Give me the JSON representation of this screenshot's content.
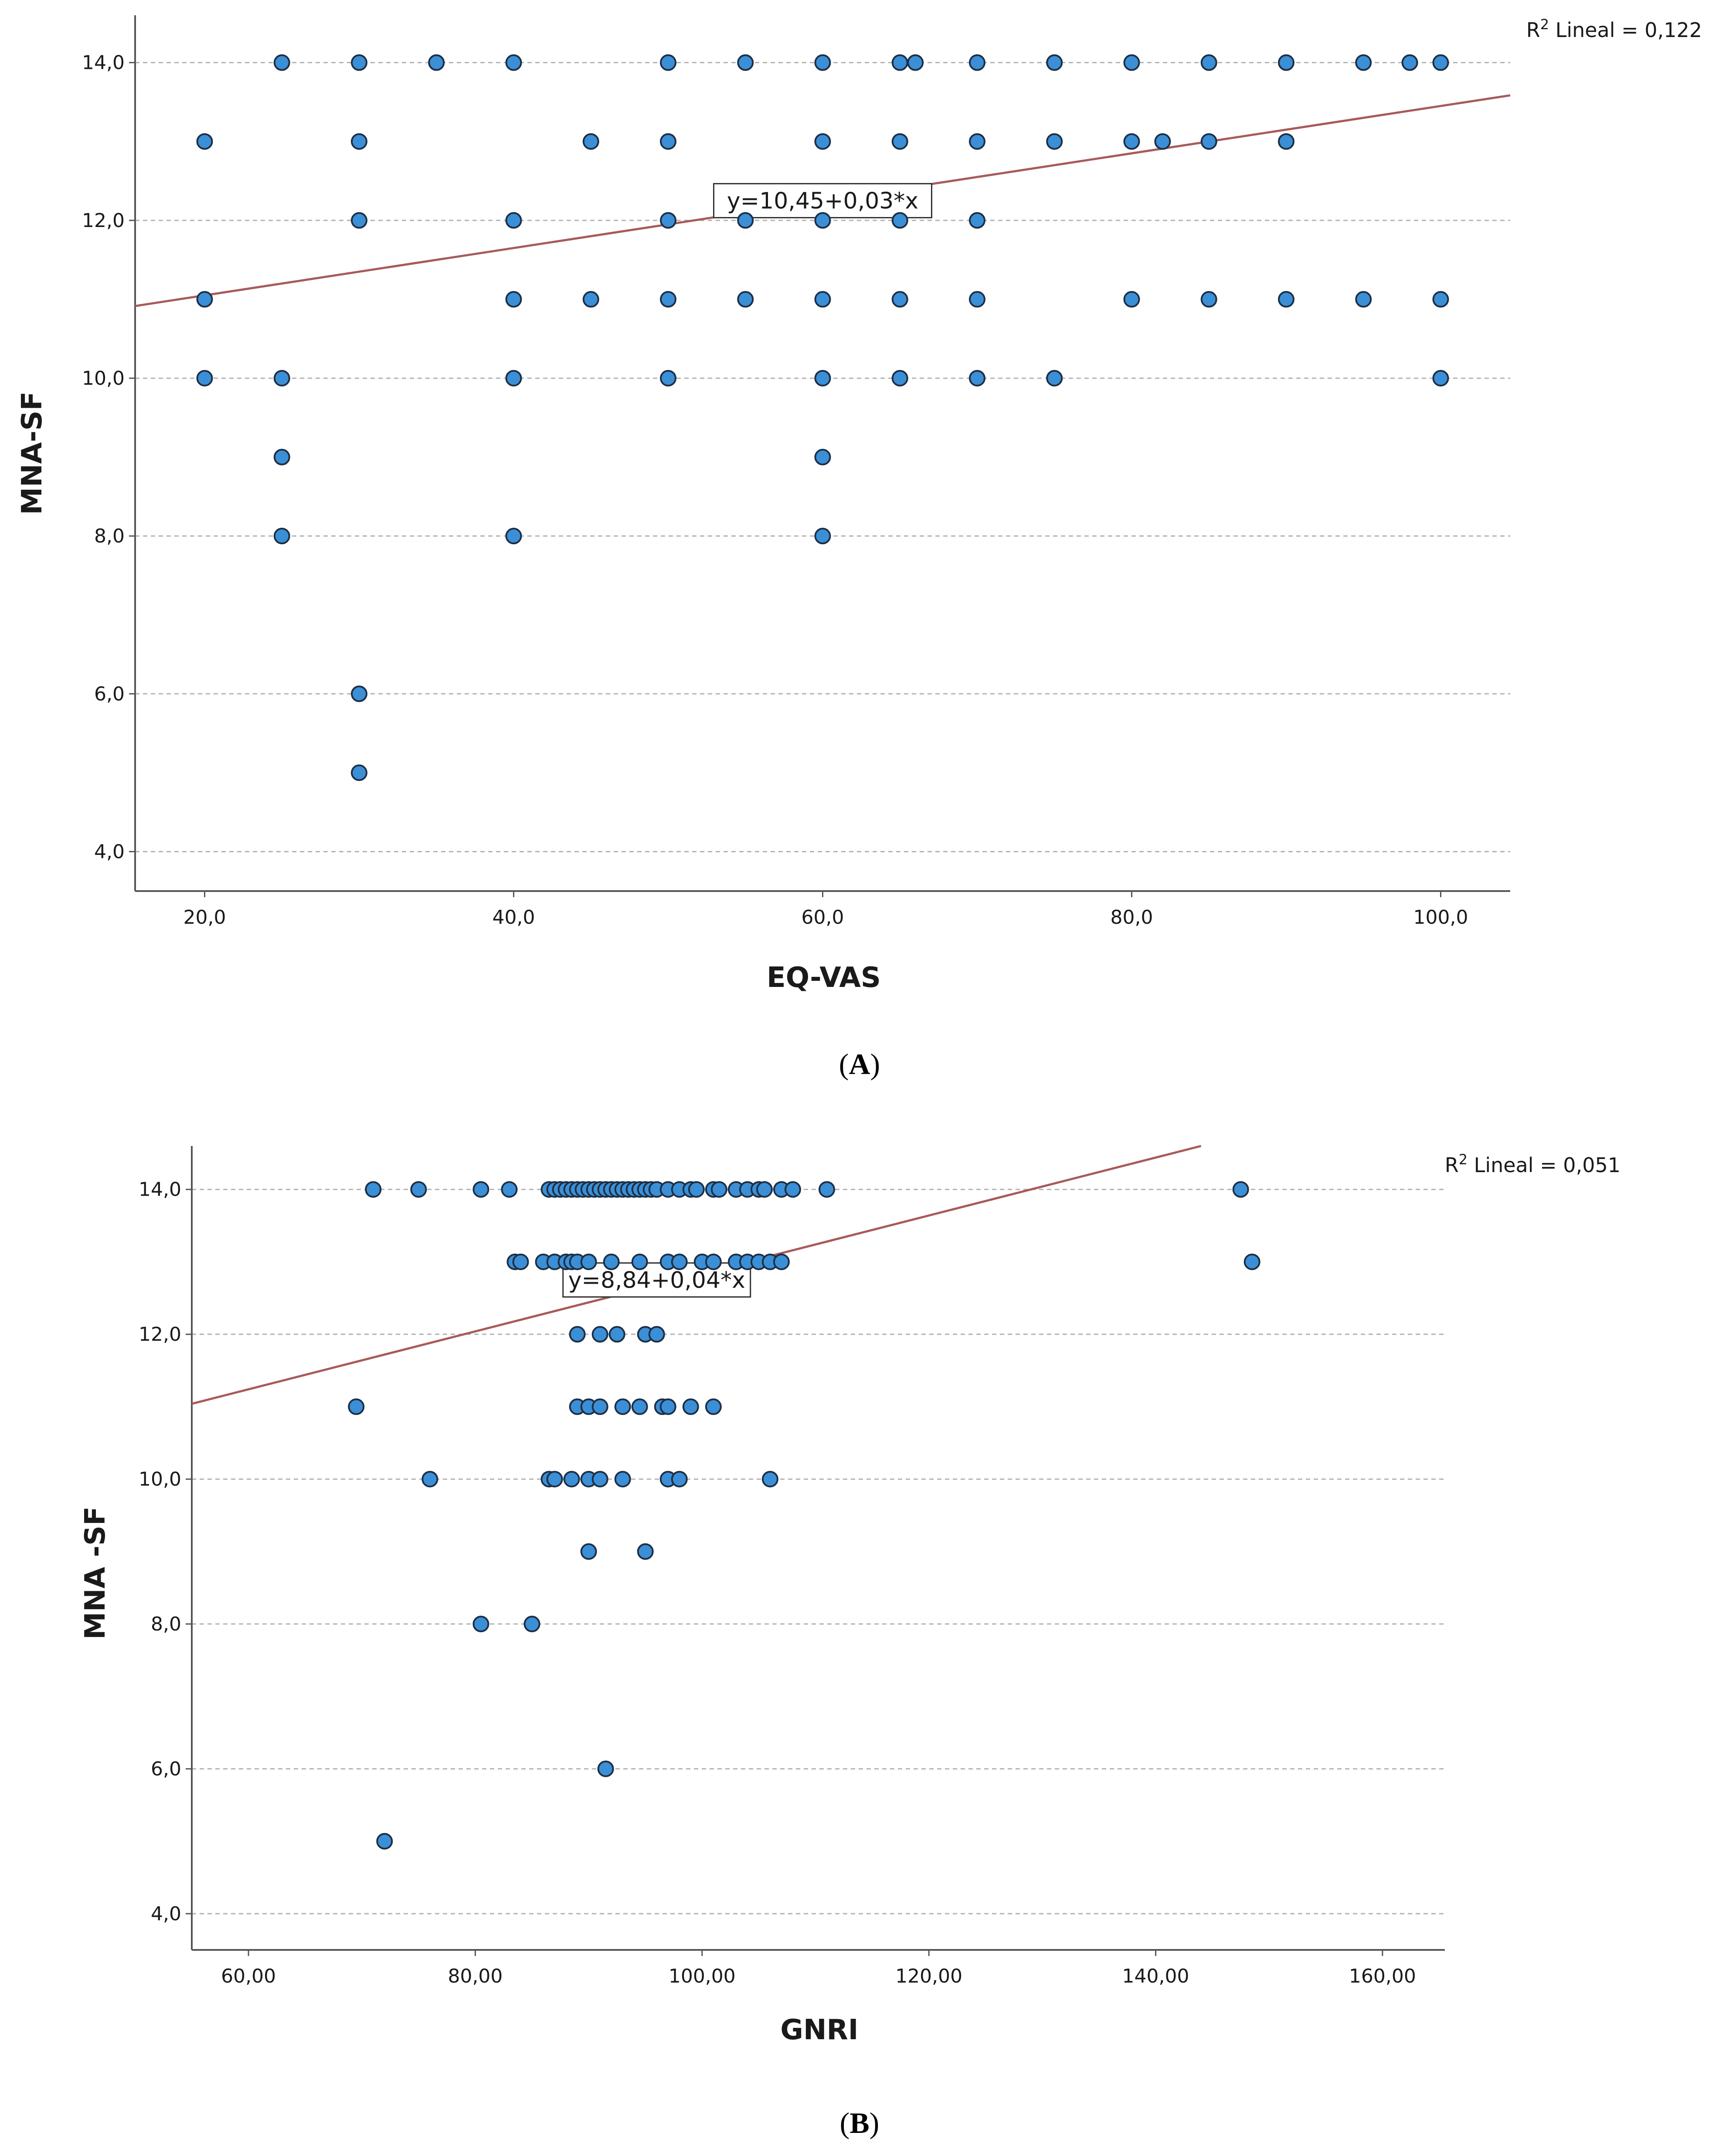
{
  "colors": {
    "point_fill": "#3b8fd6",
    "point_stroke": "#1d2f45",
    "fit_line": "#a85a5a",
    "grid": "#b3b3b3",
    "axis": "#555555"
  },
  "chart_data": [
    {
      "id": "A",
      "type": "scatter",
      "panel_label": "A",
      "xlabel": "EQ-VAS",
      "ylabel": "MNA-SF",
      "xlim": [
        15.5,
        104.5
      ],
      "ylim": [
        3.5,
        14.6
      ],
      "xticks": [
        20,
        40,
        60,
        80,
        100
      ],
      "xtick_labels": [
        "20,0",
        "40,0",
        "60,0",
        "80,0",
        "100,0"
      ],
      "yticks": [
        4,
        6,
        8,
        10,
        12,
        14
      ],
      "ytick_labels": [
        "4,0",
        "6,0",
        "8,0",
        "10,0",
        "12,0",
        "14,0"
      ],
      "grid": "horizontal",
      "fit": {
        "intercept": 10.45,
        "slope": 0.03,
        "label": "y=10,45+0,03*x",
        "label_at": [
          60.0,
          12.25
        ]
      },
      "r2_label": "R",
      "r2_sup": "2",
      "r2_text": " Lineal = 0,122",
      "points": [
        [
          25,
          14
        ],
        [
          30,
          14
        ],
        [
          35,
          14
        ],
        [
          40,
          14
        ],
        [
          50,
          14
        ],
        [
          55,
          14
        ],
        [
          60,
          14
        ],
        [
          65,
          14
        ],
        [
          66,
          14
        ],
        [
          70,
          14
        ],
        [
          75,
          14
        ],
        [
          80,
          14
        ],
        [
          85,
          14
        ],
        [
          90,
          14
        ],
        [
          95,
          14
        ],
        [
          98,
          14
        ],
        [
          100,
          14
        ],
        [
          20,
          13
        ],
        [
          30,
          13
        ],
        [
          45,
          13
        ],
        [
          50,
          13
        ],
        [
          60,
          13
        ],
        [
          65,
          13
        ],
        [
          70,
          13
        ],
        [
          75,
          13
        ],
        [
          80,
          13
        ],
        [
          82,
          13
        ],
        [
          85,
          13
        ],
        [
          90,
          13
        ],
        [
          30,
          12
        ],
        [
          40,
          12
        ],
        [
          50,
          12
        ],
        [
          55,
          12
        ],
        [
          60,
          12
        ],
        [
          65,
          12
        ],
        [
          70,
          12
        ],
        [
          20,
          11
        ],
        [
          40,
          11
        ],
        [
          45,
          11
        ],
        [
          50,
          11
        ],
        [
          55,
          11
        ],
        [
          60,
          11
        ],
        [
          65,
          11
        ],
        [
          70,
          11
        ],
        [
          80,
          11
        ],
        [
          85,
          11
        ],
        [
          90,
          11
        ],
        [
          95,
          11
        ],
        [
          100,
          11
        ],
        [
          20,
          10
        ],
        [
          25,
          10
        ],
        [
          40,
          10
        ],
        [
          50,
          10
        ],
        [
          60,
          10
        ],
        [
          65,
          10
        ],
        [
          70,
          10
        ],
        [
          75,
          10
        ],
        [
          100,
          10
        ],
        [
          25,
          9
        ],
        [
          60,
          9
        ],
        [
          25,
          8
        ],
        [
          40,
          8
        ],
        [
          60,
          8
        ],
        [
          30,
          6
        ],
        [
          30,
          5
        ]
      ]
    },
    {
      "id": "B",
      "type": "scatter",
      "panel_label": "B",
      "xlabel": "GNRI",
      "ylabel": "MNA -SF",
      "xlim": [
        55,
        165.5
      ],
      "ylim": [
        3.5,
        14.6
      ],
      "xticks": [
        60,
        80,
        100,
        120,
        140,
        160
      ],
      "xtick_labels": [
        "60,00",
        "80,00",
        "100,00",
        "120,00",
        "140,00",
        "160,00"
      ],
      "yticks": [
        4,
        6,
        8,
        10,
        12,
        14
      ],
      "ytick_labels": [
        "4,0",
        "6,0",
        "8,0",
        "10,0",
        "12,0",
        "14,0"
      ],
      "grid": "horizontal",
      "fit": {
        "intercept": 8.84,
        "slope": 0.04,
        "label": "y=8,84+0,04*x",
        "label_at": [
          96.0,
          12.75
        ]
      },
      "r2_label": "R",
      "r2_sup": "2",
      "r2_text": " Lineal = 0,051",
      "points": [
        [
          71,
          14
        ],
        [
          75,
          14
        ],
        [
          80.5,
          14
        ],
        [
          83,
          14
        ],
        [
          86.5,
          14
        ],
        [
          87,
          14
        ],
        [
          87.5,
          14
        ],
        [
          88,
          14
        ],
        [
          88.5,
          14
        ],
        [
          89,
          14
        ],
        [
          89.5,
          14
        ],
        [
          90,
          14
        ],
        [
          90.5,
          14
        ],
        [
          91,
          14
        ],
        [
          91.5,
          14
        ],
        [
          92,
          14
        ],
        [
          92.5,
          14
        ],
        [
          93,
          14
        ],
        [
          93.5,
          14
        ],
        [
          94,
          14
        ],
        [
          94.5,
          14
        ],
        [
          95,
          14
        ],
        [
          95.5,
          14
        ],
        [
          96,
          14
        ],
        [
          97,
          14
        ],
        [
          98,
          14
        ],
        [
          99,
          14
        ],
        [
          99.5,
          14
        ],
        [
          101,
          14
        ],
        [
          101.5,
          14
        ],
        [
          103,
          14
        ],
        [
          104,
          14
        ],
        [
          105,
          14
        ],
        [
          105.5,
          14
        ],
        [
          107,
          14
        ],
        [
          108,
          14
        ],
        [
          111,
          14
        ],
        [
          147.5,
          14
        ],
        [
          83.5,
          13
        ],
        [
          84,
          13
        ],
        [
          86,
          13
        ],
        [
          87,
          13
        ],
        [
          88,
          13
        ],
        [
          88.5,
          13
        ],
        [
          89,
          13
        ],
        [
          90,
          13
        ],
        [
          92,
          13
        ],
        [
          94.5,
          13
        ],
        [
          97,
          13
        ],
        [
          98,
          13
        ],
        [
          100,
          13
        ],
        [
          101,
          13
        ],
        [
          103,
          13
        ],
        [
          104,
          13
        ],
        [
          105,
          13
        ],
        [
          106,
          13
        ],
        [
          107,
          13
        ],
        [
          148.5,
          13
        ],
        [
          89,
          12
        ],
        [
          91,
          12
        ],
        [
          92.5,
          12
        ],
        [
          95,
          12
        ],
        [
          96,
          12
        ],
        [
          69.5,
          11
        ],
        [
          89,
          11
        ],
        [
          90,
          11
        ],
        [
          91,
          11
        ],
        [
          93,
          11
        ],
        [
          94.5,
          11
        ],
        [
          96.5,
          11
        ],
        [
          97,
          11
        ],
        [
          99,
          11
        ],
        [
          101,
          11
        ],
        [
          76,
          10
        ],
        [
          86.5,
          10
        ],
        [
          87,
          10
        ],
        [
          88.5,
          10
        ],
        [
          90,
          10
        ],
        [
          91,
          10
        ],
        [
          93,
          10
        ],
        [
          97,
          10
        ],
        [
          98,
          10
        ],
        [
          106,
          10
        ],
        [
          90,
          9
        ],
        [
          95,
          9
        ],
        [
          80.5,
          8
        ],
        [
          85,
          8
        ],
        [
          91.5,
          6
        ],
        [
          72,
          5
        ]
      ]
    }
  ]
}
